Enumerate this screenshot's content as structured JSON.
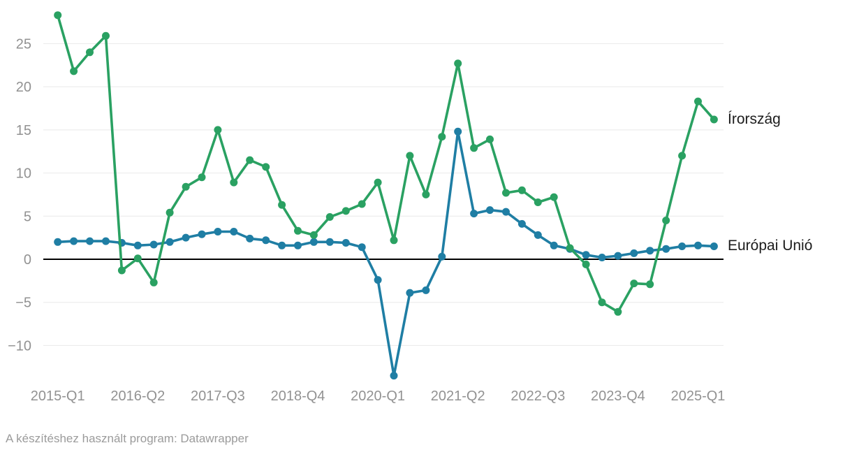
{
  "chart_data": {
    "type": "line",
    "title": "",
    "xlabel": "",
    "ylabel": "",
    "grid": true,
    "zero_line": true,
    "legend_position": "labels-at-line-end",
    "y_grid_range": [
      -10,
      25
    ],
    "ylim": [
      -13.5,
      28.4
    ],
    "y_ticks": [
      -10,
      -5,
      0,
      5,
      10,
      15,
      20,
      25
    ],
    "y_tick_labels": [
      "−10",
      "−5",
      "0",
      "5",
      "10",
      "15",
      "20",
      "25"
    ],
    "x_tick_labels": [
      "2015-Q1",
      "2016-Q2",
      "2017-Q3",
      "2018-Q4",
      "2020-Q1",
      "2021-Q2",
      "2022-Q3",
      "2023-Q4",
      "2025-Q1"
    ],
    "x_tick_indices": [
      0,
      5,
      10,
      15,
      20,
      25,
      30,
      35,
      40
    ],
    "x": [
      "2015-Q1",
      "2015-Q2",
      "2015-Q3",
      "2015-Q4",
      "2016-Q1",
      "2016-Q2",
      "2016-Q3",
      "2016-Q4",
      "2017-Q1",
      "2017-Q2",
      "2017-Q3",
      "2017-Q4",
      "2018-Q1",
      "2018-Q2",
      "2018-Q3",
      "2018-Q4",
      "2019-Q1",
      "2019-Q2",
      "2019-Q3",
      "2019-Q4",
      "2020-Q1",
      "2020-Q2",
      "2020-Q3",
      "2020-Q4",
      "2021-Q1",
      "2021-Q2",
      "2021-Q3",
      "2021-Q4",
      "2022-Q1",
      "2022-Q2",
      "2022-Q3",
      "2022-Q4",
      "2023-Q1",
      "2023-Q2",
      "2023-Q3",
      "2023-Q4",
      "2024-Q1",
      "2024-Q2",
      "2024-Q3",
      "2024-Q4",
      "2025-Q1",
      "2025-Q2"
    ],
    "series": [
      {
        "name": "Írország",
        "color": "#2aa162",
        "values": [
          28.3,
          21.8,
          24.0,
          25.9,
          -1.3,
          0.1,
          -2.7,
          5.4,
          8.4,
          9.5,
          15.0,
          8.9,
          11.5,
          10.7,
          6.3,
          3.3,
          2.8,
          4.9,
          5.6,
          6.4,
          8.9,
          2.2,
          12.0,
          7.5,
          14.2,
          22.7,
          12.9,
          13.9,
          7.7,
          8.0,
          6.6,
          7.2,
          1.3,
          -0.6,
          -5.0,
          -6.1,
          -2.8,
          -2.9,
          4.5,
          12.0,
          18.3,
          16.2
        ]
      },
      {
        "name": "Európai Unió",
        "color": "#1f7ea4",
        "values": [
          2.0,
          2.1,
          2.1,
          2.1,
          1.9,
          1.6,
          1.7,
          2.0,
          2.5,
          2.9,
          3.2,
          3.2,
          2.4,
          2.2,
          1.6,
          1.6,
          2.0,
          2.0,
          1.9,
          1.4,
          -2.4,
          -13.5,
          -3.9,
          -3.6,
          0.3,
          14.8,
          5.3,
          5.7,
          5.5,
          4.1,
          2.8,
          1.6,
          1.2,
          0.5,
          0.2,
          0.4,
          0.7,
          1.0,
          1.2,
          1.5,
          1.6,
          1.5
        ]
      }
    ],
    "colors": {
      "grid_line": "#e9e9e9",
      "zero_line": "#000000",
      "axis_tick_text": "#929292"
    }
  },
  "footer": {
    "text": "A készítéshez használt program: Datawrapper"
  }
}
